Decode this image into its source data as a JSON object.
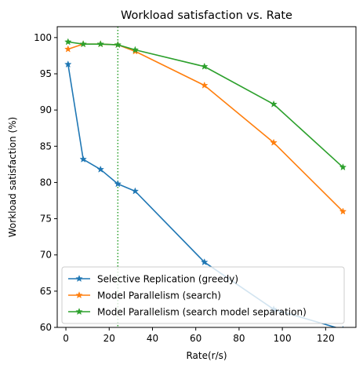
{
  "chart_data": {
    "type": "line",
    "title": "Workload satisfaction vs. Rate",
    "xlabel": "Rate(r/s)",
    "ylabel": "Workload satisfaction (%)",
    "xlim": [
      -4,
      134
    ],
    "ylim": [
      60,
      101.5
    ],
    "xticks": [
      0,
      20,
      40,
      60,
      80,
      100,
      120
    ],
    "yticks": [
      60,
      65,
      70,
      75,
      80,
      85,
      90,
      95,
      100
    ],
    "grid": false,
    "legend_position": "lower-left",
    "vline": {
      "x": 24,
      "color": "#2ca02c",
      "style": "dotted"
    },
    "x": [
      1,
      8,
      16,
      24,
      32,
      64,
      96,
      128
    ],
    "series": [
      {
        "name": "Selective Replication (greedy)",
        "color": "#1f77b4",
        "marker": "star",
        "values": [
          96.3,
          83.2,
          81.8,
          79.8,
          78.8,
          69.0,
          62.5,
          59.7
        ]
      },
      {
        "name": "Model Parallelism (search)",
        "color": "#ff7f0e",
        "marker": "star",
        "values": [
          98.4,
          99.1,
          99.1,
          99.0,
          98.1,
          93.4,
          85.5,
          76.0
        ]
      },
      {
        "name": "Model Parallelism (search model separation)",
        "color": "#2ca02c",
        "marker": "star",
        "values": [
          99.4,
          99.1,
          99.1,
          99.0,
          98.3,
          96.0,
          90.8,
          82.1
        ]
      }
    ]
  }
}
